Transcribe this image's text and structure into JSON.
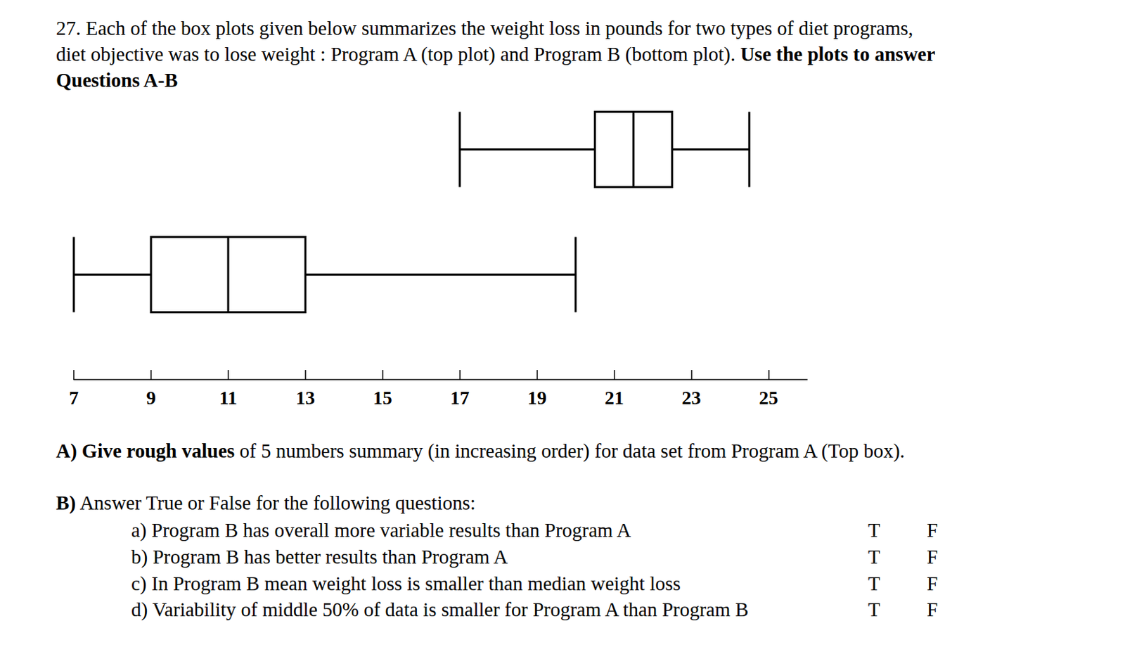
{
  "question": {
    "lines": [
      [
        {
          "text": "27. Each of the box plots given below  summarizes the weight loss in pounds for two types of diet programs,",
          "bold": false
        }
      ],
      [
        {
          "text": "diet objective was to lose weight : Program A (top plot)  and Program B (bottom plot). ",
          "bold": false
        },
        {
          "text": "Use the plots to answer",
          "bold": true
        }
      ],
      [
        {
          "text": "Questions A-B",
          "bold": true
        }
      ]
    ]
  },
  "chart_data": {
    "type": "boxplot",
    "orientation": "horizontal",
    "categories": [
      null,
      null
    ],
    "values": [
      [
        17,
        20.5,
        21.5,
        22.5,
        24.5
      ],
      [
        7,
        9,
        11,
        13,
        20
      ]
    ],
    "xlim": [
      7,
      26
    ],
    "xticks": [
      7,
      9,
      11,
      13,
      15,
      17,
      19,
      21,
      23,
      25
    ],
    "grid": false,
    "tick_labels": "x",
    "color": "#000000"
  },
  "part_a": [
    {
      "text": "A) Give ",
      "bold": true
    },
    {
      "text": "rough values",
      "bold": true
    },
    {
      "text": " of 5 numbers summary (in increasing order) for data set from  Program A (Top box).",
      "bold": false
    }
  ],
  "part_b": {
    "heading": [
      {
        "text": "B)",
        "bold": true
      },
      {
        "text": " Answer True or False for the following questions:",
        "bold": false
      }
    ],
    "items": [
      {
        "text": "a) Program B has overall more variable results  than Program A",
        "options": [
          "T",
          "F"
        ]
      },
      {
        "text": "b) Program B has better results  than Program A",
        "options": [
          "T",
          "F"
        ]
      },
      {
        "text": "c) In Program B mean weight loss is smaller than median weight loss",
        "options": [
          "T",
          "F"
        ]
      },
      {
        "text": "d) Variability of middle 50% of data is smaller for Program A than Program B",
        "options": [
          "T",
          "F"
        ]
      }
    ]
  }
}
